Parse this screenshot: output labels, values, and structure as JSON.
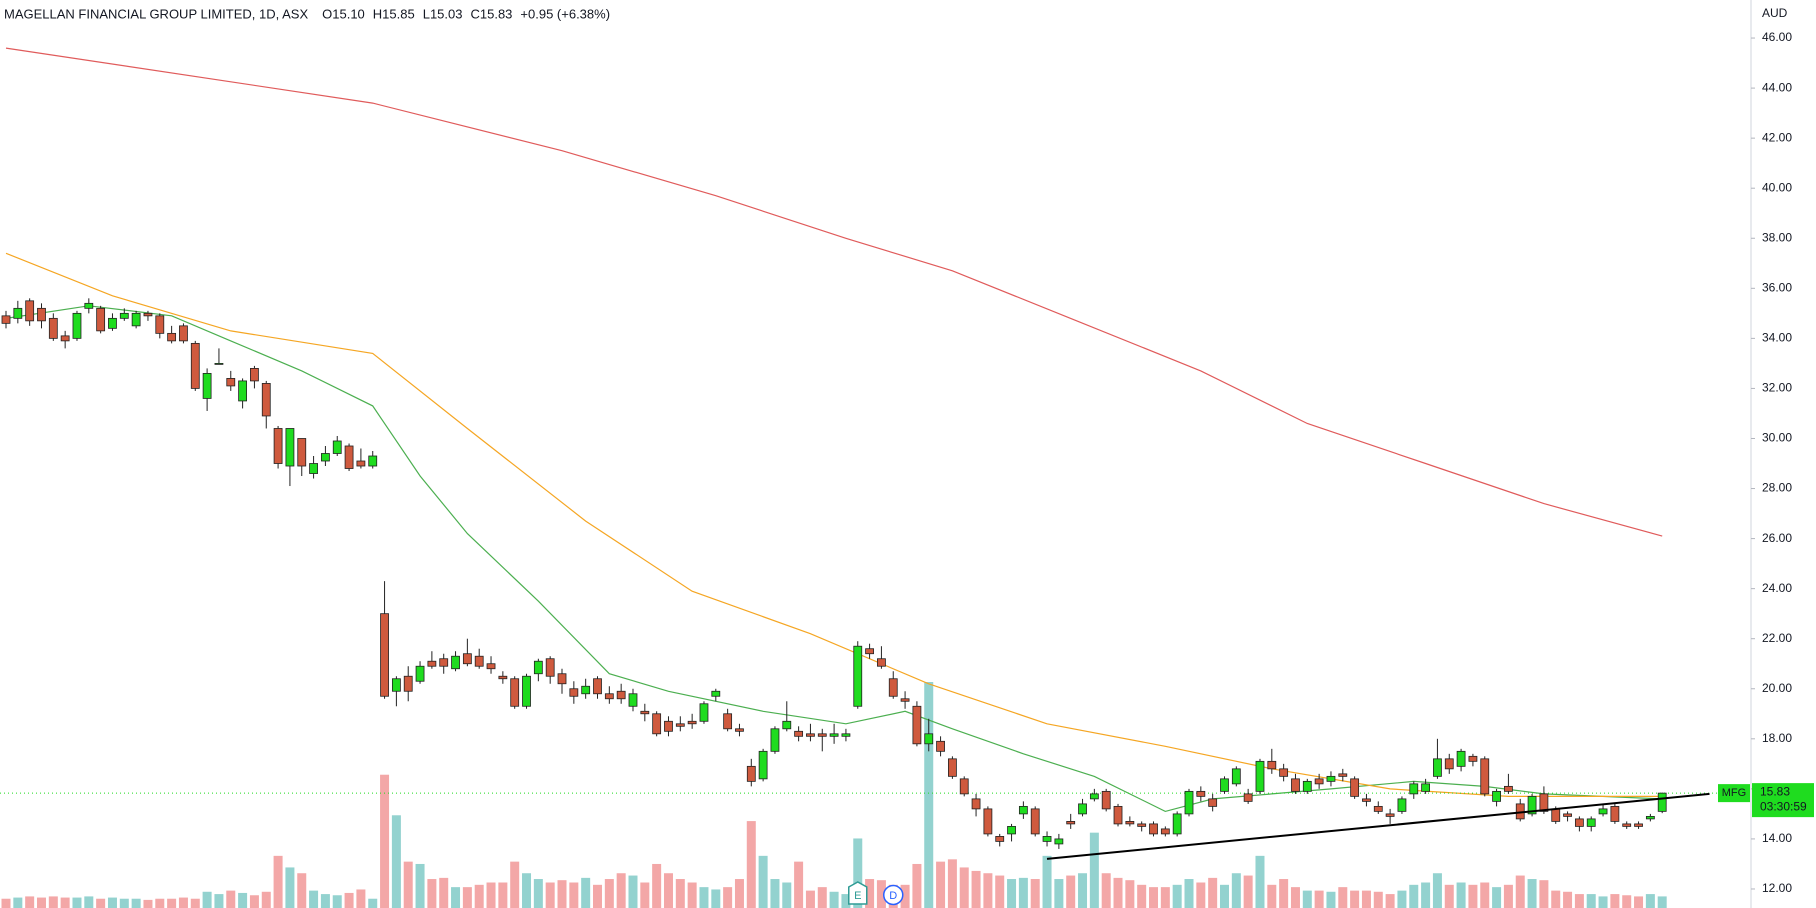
{
  "chart_data": {
    "type": "candlestick",
    "header": {
      "title": "MAGELLAN FINANCIAL GROUP LIMITED, 1D, ASX",
      "open": "O15.10",
      "high": "H15.85",
      "low": "L15.03",
      "close": "C15.83",
      "change": "+0.95 (+6.38%)"
    },
    "y_axis_label": "AUD",
    "ylim": [
      11.24,
      47.52
    ],
    "yticks": [
      {
        "value": 12,
        "label": "12.00"
      },
      {
        "value": 14,
        "label": "14.00"
      },
      {
        "value": 16,
        "label": "16.00"
      },
      {
        "value": 18,
        "label": "18.00"
      },
      {
        "value": 20,
        "label": "20.00"
      },
      {
        "value": 22,
        "label": "22.00"
      },
      {
        "value": 24,
        "label": "24.00"
      },
      {
        "value": 26,
        "label": "26.00"
      },
      {
        "value": 28,
        "label": "28.00"
      },
      {
        "value": 30,
        "label": "30.00"
      },
      {
        "value": 32,
        "label": "32.00"
      },
      {
        "value": 34,
        "label": "34.00"
      },
      {
        "value": 36,
        "label": "36.00"
      },
      {
        "value": 38,
        "label": "38.00"
      },
      {
        "value": 40,
        "label": "40.00"
      },
      {
        "value": 42,
        "label": "42.00"
      },
      {
        "value": 44,
        "label": "44.00"
      },
      {
        "value": 46,
        "label": "46.00"
      }
    ],
    "grid": false,
    "up_color": "#1fdc1f",
    "down_color": "#cf5a3e",
    "volume_up_color": "#93d2cf",
    "volume_down_color": "#f3a7a7",
    "ohlc": [
      [
        34.9,
        35.1,
        34.4,
        34.6
      ],
      [
        34.8,
        35.5,
        34.6,
        35.2
      ],
      [
        35.5,
        35.6,
        34.5,
        34.7
      ],
      [
        35.2,
        35.4,
        34.4,
        34.7
      ],
      [
        34.8,
        35.0,
        33.9,
        34.0
      ],
      [
        34.1,
        34.3,
        33.6,
        33.9
      ],
      [
        34.0,
        35.1,
        33.9,
        35.0
      ],
      [
        35.2,
        35.6,
        35.0,
        35.4
      ],
      [
        35.2,
        35.3,
        34.2,
        34.3
      ],
      [
        34.4,
        35.0,
        34.3,
        34.8
      ],
      [
        34.8,
        35.2,
        34.7,
        35.0
      ],
      [
        34.5,
        35.1,
        34.4,
        35.0
      ],
      [
        35.0,
        35.1,
        34.7,
        34.9
      ],
      [
        34.9,
        35.0,
        34.0,
        34.2
      ],
      [
        34.2,
        34.5,
        33.8,
        33.9
      ],
      [
        34.5,
        34.6,
        33.8,
        33.9
      ],
      [
        33.8,
        33.9,
        31.9,
        32.0
      ],
      [
        31.6,
        32.8,
        31.1,
        32.6
      ],
      [
        33.0,
        33.6,
        33.0,
        33.0
      ],
      [
        32.4,
        32.7,
        31.9,
        32.1
      ],
      [
        31.5,
        32.4,
        31.2,
        32.3
      ],
      [
        32.8,
        32.9,
        32.0,
        32.3
      ],
      [
        32.2,
        32.3,
        30.4,
        30.9
      ],
      [
        30.4,
        30.5,
        28.8,
        29.0
      ],
      [
        28.9,
        30.4,
        28.1,
        30.4
      ],
      [
        30.0,
        30.0,
        28.5,
        28.9
      ],
      [
        28.6,
        29.3,
        28.4,
        29.0
      ],
      [
        29.1,
        29.7,
        28.9,
        29.4
      ],
      [
        29.4,
        30.1,
        29.3,
        29.9
      ],
      [
        29.7,
        29.8,
        28.7,
        28.8
      ],
      [
        29.1,
        29.6,
        28.8,
        28.9
      ],
      [
        28.9,
        29.5,
        28.8,
        29.3
      ],
      [
        23.0,
        24.3,
        19.6,
        19.7
      ],
      [
        19.9,
        20.5,
        19.3,
        20.4
      ],
      [
        20.5,
        20.9,
        19.5,
        19.9
      ],
      [
        20.3,
        21.1,
        20.2,
        20.9
      ],
      [
        21.1,
        21.5,
        20.8,
        20.9
      ],
      [
        21.2,
        21.4,
        20.6,
        20.9
      ],
      [
        20.8,
        21.5,
        20.7,
        21.3
      ],
      [
        21.4,
        22.0,
        20.9,
        21.0
      ],
      [
        21.3,
        21.6,
        20.8,
        20.9
      ],
      [
        21.0,
        21.3,
        20.6,
        20.8
      ],
      [
        20.5,
        20.7,
        20.2,
        20.4
      ],
      [
        20.4,
        20.5,
        19.2,
        19.3
      ],
      [
        19.3,
        20.6,
        19.2,
        20.5
      ],
      [
        20.6,
        21.2,
        20.3,
        21.1
      ],
      [
        21.2,
        21.3,
        20.2,
        20.5
      ],
      [
        20.6,
        20.8,
        19.8,
        20.2
      ],
      [
        20.0,
        20.3,
        19.4,
        19.7
      ],
      [
        19.8,
        20.4,
        19.6,
        20.1
      ],
      [
        20.4,
        20.5,
        19.6,
        19.8
      ],
      [
        19.8,
        20.1,
        19.4,
        19.6
      ],
      [
        19.9,
        20.2,
        19.4,
        19.6
      ],
      [
        19.3,
        20.0,
        19.1,
        19.8
      ],
      [
        19.1,
        19.4,
        18.7,
        19.0
      ],
      [
        19.0,
        19.1,
        18.1,
        18.2
      ],
      [
        18.7,
        18.9,
        18.1,
        18.3
      ],
      [
        18.6,
        18.9,
        18.3,
        18.5
      ],
      [
        18.7,
        19.0,
        18.4,
        18.6
      ],
      [
        18.7,
        19.5,
        18.6,
        19.4
      ],
      [
        19.7,
        20.0,
        19.5,
        19.9
      ],
      [
        19.0,
        19.2,
        18.3,
        18.4
      ],
      [
        18.4,
        18.6,
        18.1,
        18.3
      ],
      [
        16.9,
        17.2,
        16.1,
        16.3
      ],
      [
        16.4,
        17.6,
        16.3,
        17.5
      ],
      [
        17.5,
        18.5,
        17.4,
        18.4
      ],
      [
        18.4,
        19.5,
        18.3,
        18.7
      ],
      [
        18.3,
        18.5,
        17.9,
        18.1
      ],
      [
        18.2,
        18.6,
        17.9,
        18.1
      ],
      [
        18.2,
        18.4,
        17.5,
        18.1
      ],
      [
        18.1,
        18.6,
        17.8,
        18.2
      ],
      [
        18.1,
        18.4,
        17.9,
        18.2
      ],
      [
        19.3,
        21.9,
        19.2,
        21.7
      ],
      [
        21.6,
        21.8,
        21.2,
        21.4
      ],
      [
        21.2,
        21.7,
        20.8,
        20.9
      ],
      [
        20.4,
        20.7,
        19.6,
        19.7
      ],
      [
        19.6,
        19.9,
        19.2,
        19.5
      ],
      [
        19.3,
        19.5,
        17.7,
        17.8
      ],
      [
        17.8,
        18.8,
        17.5,
        18.2
      ],
      [
        17.9,
        18.1,
        17.3,
        17.5
      ],
      [
        17.2,
        17.3,
        16.4,
        16.5
      ],
      [
        16.4,
        16.5,
        15.7,
        15.8
      ],
      [
        15.6,
        15.8,
        14.9,
        15.2
      ],
      [
        15.2,
        15.3,
        14.1,
        14.2
      ],
      [
        14.1,
        14.2,
        13.7,
        13.9
      ],
      [
        14.2,
        14.6,
        13.9,
        14.5
      ],
      [
        15.0,
        15.5,
        14.8,
        15.3
      ],
      [
        15.2,
        15.3,
        14.1,
        14.2
      ],
      [
        13.9,
        14.3,
        13.7,
        14.1
      ],
      [
        13.8,
        14.2,
        13.6,
        14.0
      ],
      [
        14.7,
        15.0,
        14.4,
        14.6
      ],
      [
        15.0,
        15.6,
        14.9,
        15.4
      ],
      [
        15.6,
        16.0,
        15.5,
        15.8
      ],
      [
        15.9,
        16.0,
        15.1,
        15.2
      ],
      [
        15.3,
        15.4,
        14.5,
        14.6
      ],
      [
        14.7,
        14.9,
        14.5,
        14.6
      ],
      [
        14.6,
        14.7,
        14.3,
        14.5
      ],
      [
        14.6,
        14.7,
        14.1,
        14.2
      ],
      [
        14.4,
        14.5,
        14.1,
        14.2
      ],
      [
        14.2,
        15.1,
        14.1,
        15.0
      ],
      [
        15.0,
        16.0,
        14.9,
        15.9
      ],
      [
        15.9,
        16.1,
        15.5,
        15.7
      ],
      [
        15.6,
        15.8,
        15.1,
        15.3
      ],
      [
        15.9,
        16.5,
        15.8,
        16.4
      ],
      [
        16.2,
        16.9,
        16.1,
        16.8
      ],
      [
        15.8,
        16.0,
        15.4,
        15.5
      ],
      [
        15.9,
        17.2,
        15.8,
        17.1
      ],
      [
        17.1,
        17.6,
        16.6,
        16.8
      ],
      [
        16.8,
        17.0,
        16.3,
        16.5
      ],
      [
        16.4,
        16.6,
        15.8,
        15.9
      ],
      [
        15.9,
        16.4,
        15.8,
        16.3
      ],
      [
        16.4,
        16.6,
        16.0,
        16.2
      ],
      [
        16.3,
        16.7,
        16.1,
        16.5
      ],
      [
        16.6,
        16.8,
        16.3,
        16.5
      ],
      [
        16.4,
        16.5,
        15.6,
        15.7
      ],
      [
        15.6,
        15.8,
        15.3,
        15.5
      ],
      [
        15.3,
        15.5,
        15.0,
        15.1
      ],
      [
        15.0,
        15.2,
        14.6,
        14.9
      ],
      [
        15.1,
        15.7,
        15.0,
        15.6
      ],
      [
        15.8,
        16.3,
        15.6,
        16.2
      ],
      [
        15.9,
        16.4,
        15.8,
        16.2
      ],
      [
        16.5,
        18.0,
        16.4,
        17.2
      ],
      [
        17.2,
        17.4,
        16.6,
        16.8
      ],
      [
        16.9,
        17.6,
        16.7,
        17.5
      ],
      [
        17.3,
        17.4,
        16.9,
        17.1
      ],
      [
        17.2,
        17.3,
        15.7,
        15.8
      ],
      [
        15.5,
        16.0,
        15.3,
        15.9
      ],
      [
        16.1,
        16.6,
        15.8,
        15.9
      ],
      [
        15.4,
        15.6,
        14.7,
        14.8
      ],
      [
        15.0,
        15.8,
        14.9,
        15.7
      ],
      [
        15.8,
        16.1,
        15.0,
        15.1
      ],
      [
        15.2,
        15.3,
        14.6,
        14.7
      ],
      [
        15.0,
        15.1,
        14.7,
        14.9
      ],
      [
        14.8,
        14.9,
        14.3,
        14.5
      ],
      [
        14.5,
        14.9,
        14.3,
        14.8
      ],
      [
        15.0,
        15.4,
        14.9,
        15.2
      ],
      [
        15.3,
        15.4,
        14.6,
        14.7
      ],
      [
        14.6,
        14.7,
        14.4,
        14.5
      ],
      [
        14.6,
        14.7,
        14.4,
        14.5
      ],
      [
        14.8,
        15.0,
        14.7,
        14.9
      ],
      [
        15.1,
        15.85,
        15.03,
        15.83
      ]
    ],
    "volume": [
      8,
      9,
      10,
      9,
      10,
      9,
      9,
      10,
      8,
      9,
      8,
      8,
      7,
      8,
      8,
      9,
      8,
      14,
      12,
      15,
      13,
      11,
      14,
      45,
      35,
      30,
      15,
      12,
      11,
      13,
      16,
      8,
      115,
      80,
      40,
      38,
      25,
      26,
      18,
      18,
      20,
      22,
      22,
      40,
      30,
      25,
      22,
      24,
      22,
      26,
      20,
      25,
      30,
      28,
      22,
      38,
      30,
      25,
      22,
      18,
      16,
      18,
      25,
      75,
      45,
      25,
      22,
      40,
      15,
      18,
      14,
      12,
      60,
      25,
      24,
      20,
      20,
      38,
      195,
      40,
      42,
      35,
      32,
      30,
      28,
      25,
      26,
      25,
      45,
      25,
      28,
      30,
      65,
      30,
      26,
      24,
      20,
      18,
      18,
      20,
      25,
      22,
      26,
      20,
      30,
      28,
      45,
      20,
      25,
      18,
      15,
      15,
      14,
      18,
      15,
      15,
      14,
      12,
      15,
      20,
      22,
      30,
      20,
      22,
      20,
      22,
      18,
      20,
      28,
      25,
      24,
      15,
      14,
      12,
      12,
      10,
      12,
      11,
      10,
      12,
      10
    ],
    "moving_averages": [
      {
        "color": "#4caf50",
        "x": [
          0,
          7,
          14,
          19,
          25,
          31,
          35,
          39,
          45,
          51,
          56,
          64,
          71,
          76,
          80,
          86,
          92,
          98,
          102,
          107,
          112,
          119,
          125,
          130,
          140
        ],
        "values": [
          34.8,
          35.3,
          34.9,
          33.9,
          32.7,
          31.3,
          28.5,
          26.2,
          23.5,
          20.6,
          19.9,
          19.1,
          18.6,
          19.1,
          18.4,
          17.4,
          16.5,
          15.1,
          15.6,
          15.8,
          16.0,
          16.3,
          16.1,
          15.8,
          15.6
        ]
      },
      {
        "color": "#f5a623",
        "x": [
          0,
          9,
          19,
          31,
          39,
          49,
          58,
          68,
          78,
          88,
          98,
          107,
          117,
          127,
          140
        ],
        "values": [
          37.4,
          35.7,
          34.3,
          33.4,
          30.4,
          26.7,
          23.9,
          22.2,
          20.2,
          18.6,
          17.7,
          16.8,
          16.0,
          15.7,
          15.7
        ]
      },
      {
        "color": "#e05b5b",
        "x": [
          0,
          31,
          47,
          60,
          71,
          80,
          90,
          101,
          110,
          120,
          130,
          140
        ],
        "values": [
          45.6,
          43.4,
          41.5,
          39.7,
          38.0,
          36.7,
          34.8,
          32.7,
          30.6,
          29.0,
          27.4,
          26.1
        ]
      }
    ],
    "trendline": {
      "color": "#000000",
      "x": [
        88,
        144
      ],
      "values": [
        13.2,
        15.8
      ]
    },
    "last_price": {
      "symbol": "MFG",
      "value": 15.83,
      "countdown": "03:30:59",
      "color": "#1fdc1f"
    },
    "events": [
      {
        "label": "E",
        "index": 72,
        "color": "#2f9c95"
      },
      {
        "label": "D",
        "index": 75,
        "color": "#2962ff"
      }
    ]
  }
}
